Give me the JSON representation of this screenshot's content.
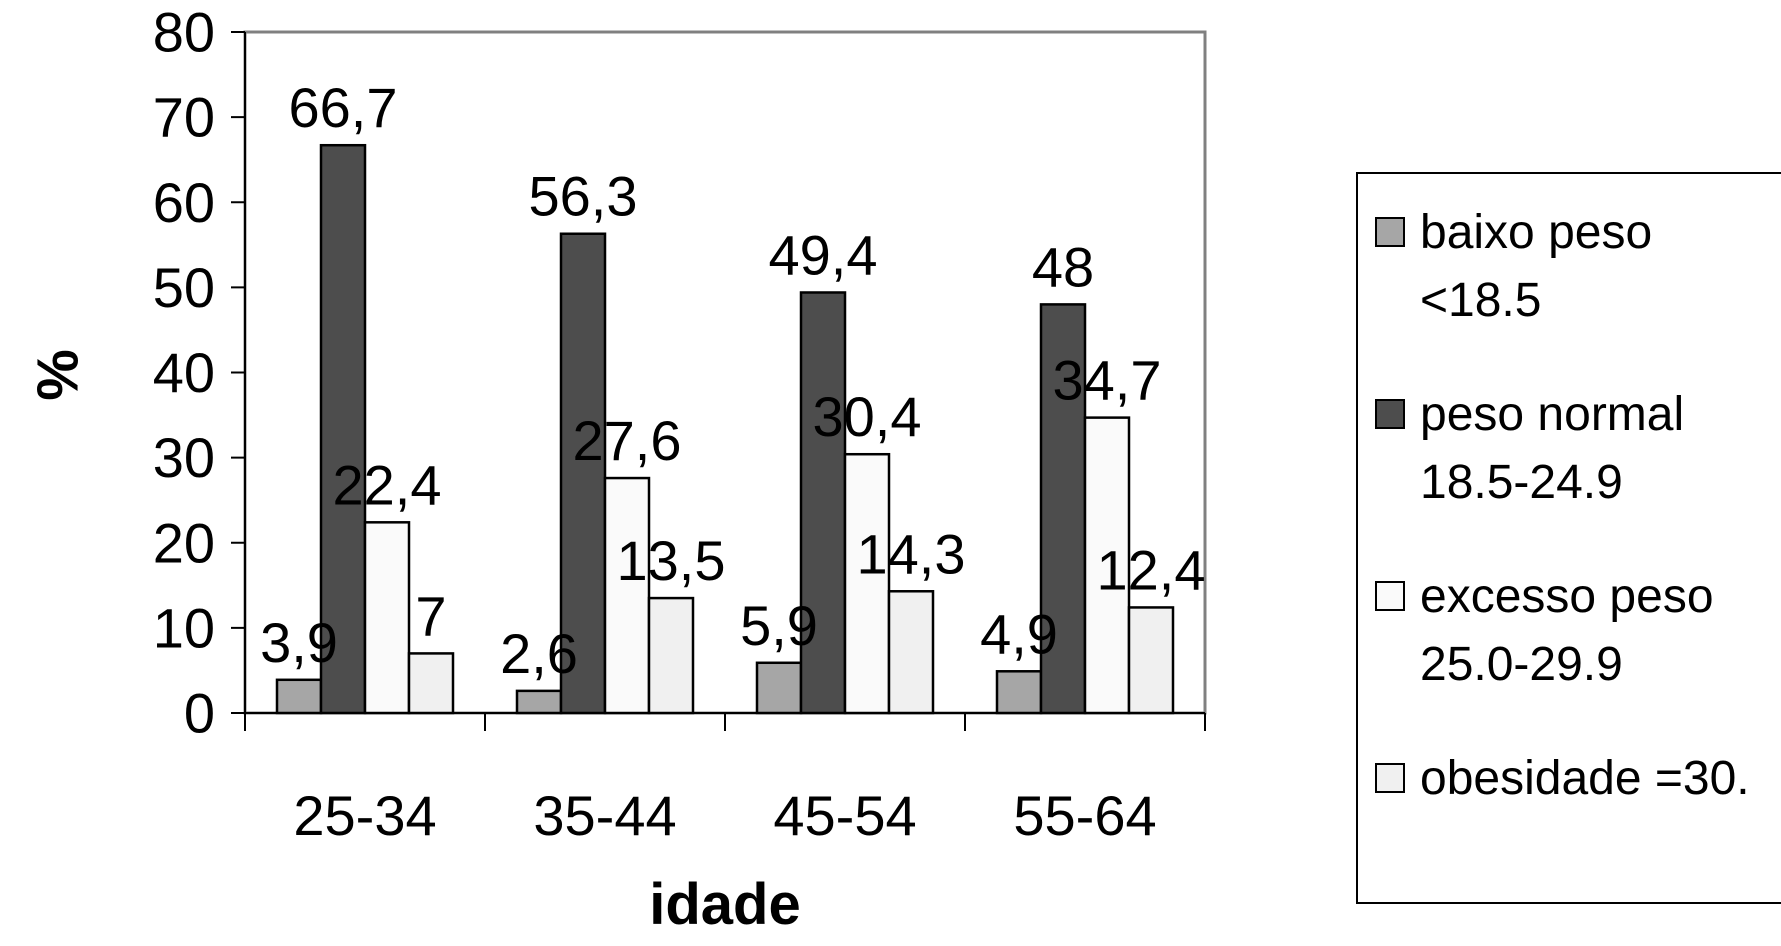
{
  "chart_data": {
    "type": "bar",
    "xlabel": "idade",
    "ylabel": "%",
    "ylim": [
      0,
      80
    ],
    "yticks": [
      "0",
      "10",
      "20",
      "30",
      "40",
      "50",
      "60",
      "70",
      "80"
    ],
    "categories": [
      "25-34",
      "35-44",
      "45-54",
      "55-64"
    ],
    "grid": false,
    "legend_position": "right",
    "series": [
      {
        "name_lines": [
          "baixo peso",
          "<18.5"
        ],
        "color": "#a6a6a6",
        "values": [
          3.9,
          2.6,
          5.9,
          4.9
        ],
        "labels": [
          "3,9",
          "2,6",
          "5,9",
          "4,9"
        ]
      },
      {
        "name_lines": [
          "peso normal",
          "18.5-24.9"
        ],
        "color": "#4d4d4d",
        "values": [
          66.7,
          56.3,
          49.4,
          48
        ],
        "labels": [
          "66,7",
          "56,3",
          "49,4",
          "48"
        ]
      },
      {
        "name_lines": [
          "excesso peso",
          "25.0-29.9"
        ],
        "color": "#fafafa",
        "values": [
          22.4,
          27.6,
          30.4,
          34.7
        ],
        "labels": [
          "22,4",
          "27,6",
          "30,4",
          "34,7"
        ]
      },
      {
        "name_lines": [
          "obesidade =30."
        ],
        "color": "#f0f0f0",
        "values": [
          7,
          13.5,
          14.3,
          12.4
        ],
        "labels": [
          "7",
          "13,5",
          "14,3",
          "12,4"
        ]
      }
    ]
  }
}
